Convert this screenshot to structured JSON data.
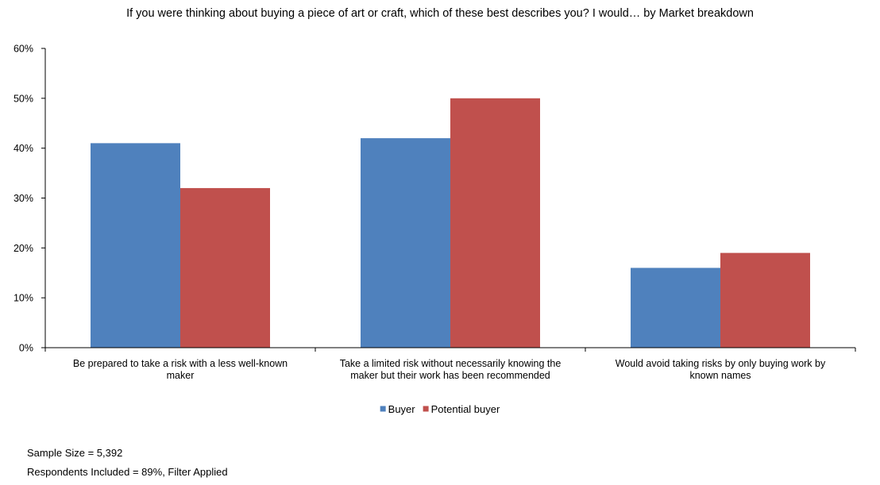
{
  "chart_data": {
    "type": "bar",
    "title": "If you were thinking about buying a piece of art or craft, which of these best describes you? I would… by Market breakdown",
    "xlabel": "",
    "ylabel": "",
    "categories": [
      [
        "Be prepared to take a risk with a less well-known",
        "maker"
      ],
      [
        "Take a limited risk without necessarily knowing the",
        "maker but their work has been recommended"
      ],
      [
        "Would avoid taking risks by only buying work by",
        "known names"
      ]
    ],
    "series": [
      {
        "name": "Buyer",
        "color": "#4f81bd",
        "values": [
          41,
          42,
          16
        ]
      },
      {
        "name": "Potential buyer",
        "color": "#c0504d",
        "values": [
          32,
          50,
          19
        ]
      }
    ],
    "ylim": [
      0,
      60
    ],
    "yticks": [
      0,
      10,
      20,
      30,
      40,
      50,
      60
    ],
    "ytick_labels": [
      "0%",
      "10%",
      "20%",
      "30%",
      "40%",
      "50%",
      "60%"
    ],
    "grid": false,
    "legend_position": "bottom"
  },
  "notes": {
    "sample_size": "Sample Size = 5,392",
    "respondents": "Respondents Included = 89%, Filter Applied"
  }
}
